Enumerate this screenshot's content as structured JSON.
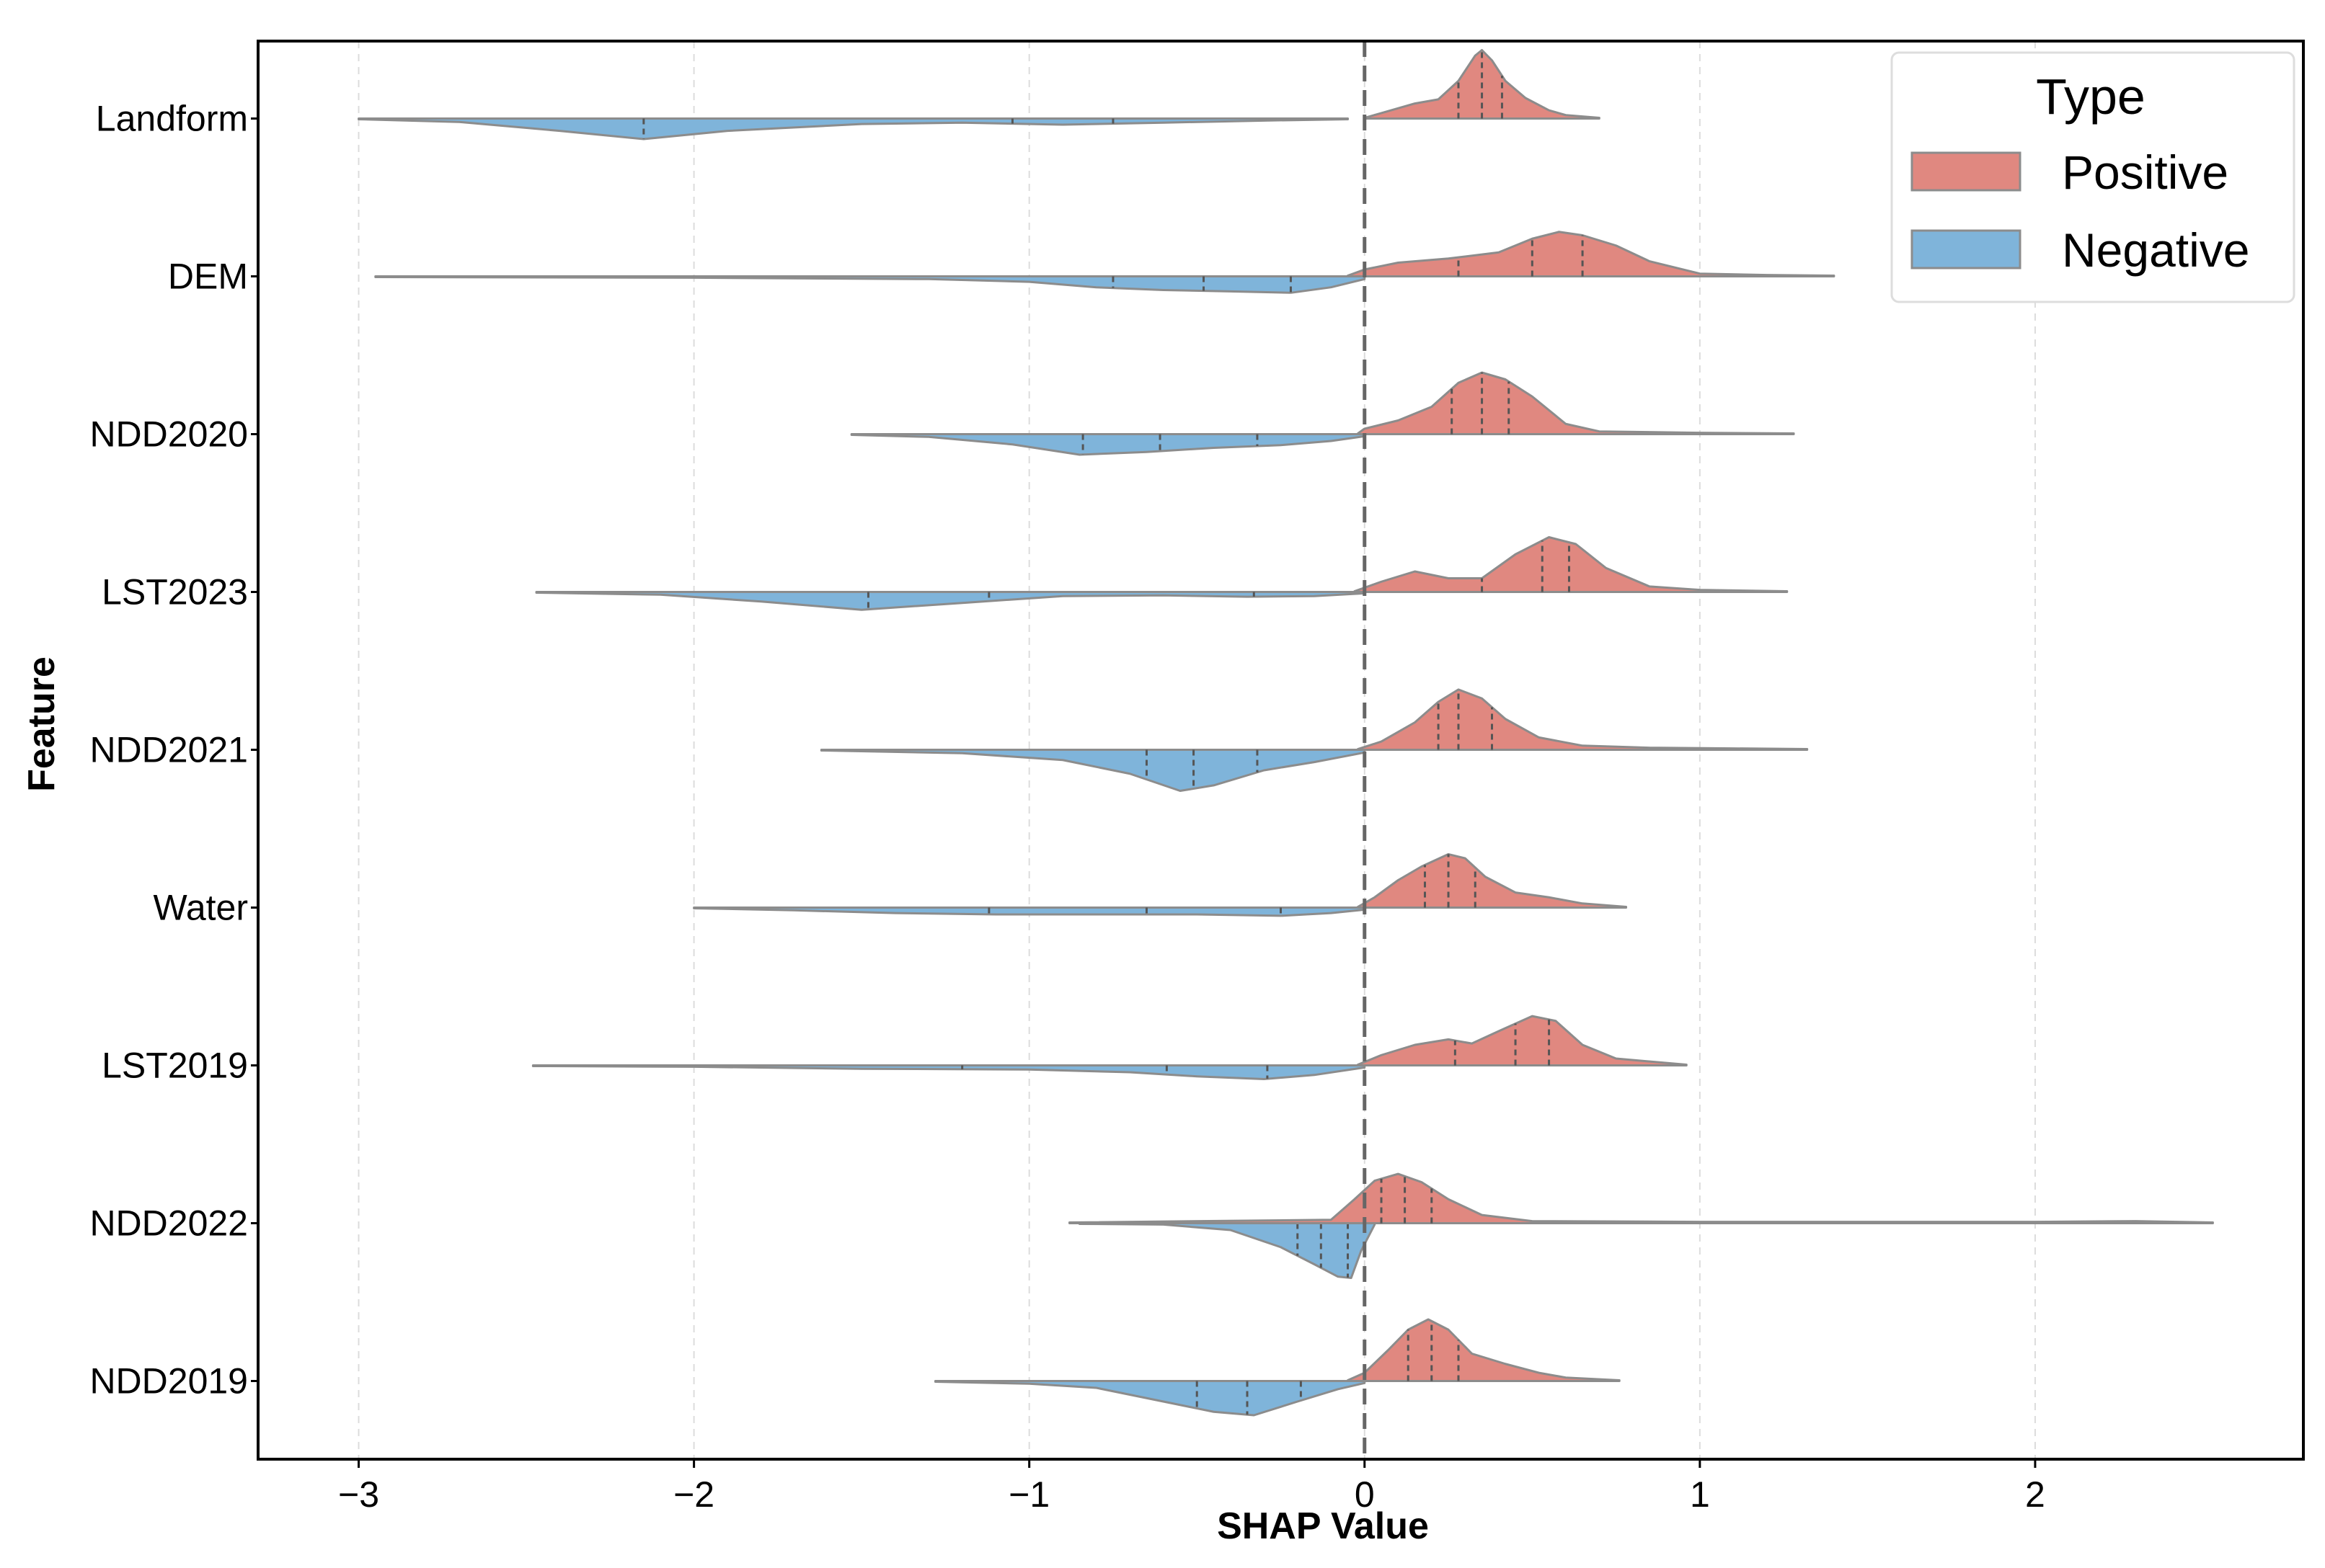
{
  "chart_data": {
    "type": "violin",
    "subtype": "split-violin",
    "title": "",
    "xlabel": "SHAP Value",
    "ylabel": "Feature",
    "xlim": [
      -3.3,
      2.8
    ],
    "x_ticks": [
      -3,
      -2,
      -1,
      0,
      1,
      2
    ],
    "x_tick_labels": [
      "−3",
      "−2",
      "−1",
      "0",
      "1",
      "2"
    ],
    "grid": "vertical dashed",
    "reference_line": 0,
    "legend": {
      "title": "Type",
      "placement": "top-right",
      "entries": [
        {
          "label": "Positive",
          "color": "#e08880"
        },
        {
          "label": "Negative",
          "color": "#7fb4da"
        }
      ]
    },
    "colors": {
      "positive": "#e08880",
      "negative": "#7fb4da",
      "outline": "#8c8c8c",
      "quartile": "#555555",
      "zero_line": "#666666"
    },
    "features": [
      {
        "name": "Landform",
        "positive": {
          "range": [
            0.0,
            0.7
          ],
          "quartiles": [
            0.28,
            0.35,
            0.41
          ],
          "density": [
            [
              0.0,
              0.01
            ],
            [
              0.05,
              0.08
            ],
            [
              0.15,
              0.22
            ],
            [
              0.22,
              0.28
            ],
            [
              0.28,
              0.55
            ],
            [
              0.33,
              0.92
            ],
            [
              0.35,
              1.0
            ],
            [
              0.38,
              0.85
            ],
            [
              0.42,
              0.55
            ],
            [
              0.48,
              0.3
            ],
            [
              0.55,
              0.12
            ],
            [
              0.6,
              0.05
            ],
            [
              0.7,
              0.01
            ]
          ]
        },
        "negative": {
          "range": [
            -3.0,
            -0.05
          ],
          "quartiles": [
            -2.15,
            -1.05,
            -0.75
          ],
          "density": [
            [
              -3.0,
              0.01
            ],
            [
              -2.7,
              0.05
            ],
            [
              -2.4,
              0.18
            ],
            [
              -2.15,
              0.3
            ],
            [
              -1.9,
              0.18
            ],
            [
              -1.5,
              0.08
            ],
            [
              -1.2,
              0.06
            ],
            [
              -0.9,
              0.09
            ],
            [
              -0.6,
              0.06
            ],
            [
              -0.3,
              0.03
            ],
            [
              -0.05,
              0.01
            ]
          ]
        }
      },
      {
        "name": "DEM",
        "positive": {
          "range": [
            -0.05,
            1.4
          ],
          "quartiles": [
            0.28,
            0.5,
            0.65
          ],
          "density": [
            [
              -0.05,
              0.01
            ],
            [
              0.0,
              0.1
            ],
            [
              0.1,
              0.2
            ],
            [
              0.25,
              0.26
            ],
            [
              0.4,
              0.35
            ],
            [
              0.5,
              0.55
            ],
            [
              0.58,
              0.65
            ],
            [
              0.65,
              0.6
            ],
            [
              0.75,
              0.45
            ],
            [
              0.85,
              0.22
            ],
            [
              1.0,
              0.04
            ],
            [
              1.2,
              0.02
            ],
            [
              1.4,
              0.01
            ]
          ]
        },
        "negative": {
          "range": [
            -2.95,
            0.0
          ],
          "quartiles": [
            -0.75,
            -0.48,
            -0.22
          ],
          "density": [
            [
              -2.95,
              0.01
            ],
            [
              -2.0,
              0.02
            ],
            [
              -1.3,
              0.04
            ],
            [
              -1.0,
              0.08
            ],
            [
              -0.8,
              0.16
            ],
            [
              -0.6,
              0.2
            ],
            [
              -0.4,
              0.22
            ],
            [
              -0.22,
              0.24
            ],
            [
              -0.1,
              0.16
            ],
            [
              0.0,
              0.04
            ]
          ]
        }
      },
      {
        "name": "NDD2020",
        "positive": {
          "range": [
            -0.02,
            1.28
          ],
          "quartiles": [
            0.26,
            0.35,
            0.43
          ],
          "density": [
            [
              -0.02,
              0.01
            ],
            [
              0.0,
              0.08
            ],
            [
              0.1,
              0.2
            ],
            [
              0.2,
              0.4
            ],
            [
              0.28,
              0.75
            ],
            [
              0.35,
              0.9
            ],
            [
              0.42,
              0.8
            ],
            [
              0.5,
              0.55
            ],
            [
              0.6,
              0.15
            ],
            [
              0.7,
              0.04
            ],
            [
              1.0,
              0.02
            ],
            [
              1.28,
              0.01
            ]
          ]
        },
        "negative": {
          "range": [
            -1.53,
            0.0
          ],
          "quartiles": [
            -0.84,
            -0.61,
            -0.32
          ],
          "density": [
            [
              -1.53,
              0.01
            ],
            [
              -1.3,
              0.04
            ],
            [
              -1.05,
              0.15
            ],
            [
              -0.85,
              0.3
            ],
            [
              -0.65,
              0.26
            ],
            [
              -0.45,
              0.2
            ],
            [
              -0.25,
              0.16
            ],
            [
              -0.1,
              0.1
            ],
            [
              0.0,
              0.03
            ]
          ]
        }
      },
      {
        "name": "LST2023",
        "positive": {
          "range": [
            -0.03,
            1.26
          ],
          "quartiles": [
            0.35,
            0.53,
            0.61
          ],
          "density": [
            [
              -0.03,
              0.01
            ],
            [
              0.05,
              0.15
            ],
            [
              0.15,
              0.3
            ],
            [
              0.25,
              0.2
            ],
            [
              0.35,
              0.2
            ],
            [
              0.45,
              0.55
            ],
            [
              0.55,
              0.8
            ],
            [
              0.63,
              0.7
            ],
            [
              0.72,
              0.35
            ],
            [
              0.85,
              0.08
            ],
            [
              1.0,
              0.03
            ],
            [
              1.26,
              0.01
            ]
          ]
        },
        "negative": {
          "range": [
            -2.47,
            0.0
          ],
          "quartiles": [
            -1.48,
            -1.12,
            -0.33
          ],
          "density": [
            [
              -2.47,
              0.01
            ],
            [
              -2.1,
              0.04
            ],
            [
              -1.8,
              0.14
            ],
            [
              -1.5,
              0.26
            ],
            [
              -1.2,
              0.16
            ],
            [
              -0.9,
              0.06
            ],
            [
              -0.6,
              0.05
            ],
            [
              -0.35,
              0.07
            ],
            [
              -0.15,
              0.06
            ],
            [
              0.0,
              0.02
            ]
          ]
        }
      },
      {
        "name": "NDD2021",
        "positive": {
          "range": [
            -0.02,
            1.32
          ],
          "quartiles": [
            0.22,
            0.28,
            0.38
          ],
          "density": [
            [
              -0.02,
              0.01
            ],
            [
              0.05,
              0.12
            ],
            [
              0.15,
              0.4
            ],
            [
              0.22,
              0.7
            ],
            [
              0.28,
              0.88
            ],
            [
              0.35,
              0.75
            ],
            [
              0.42,
              0.45
            ],
            [
              0.52,
              0.18
            ],
            [
              0.65,
              0.06
            ],
            [
              0.85,
              0.03
            ],
            [
              1.1,
              0.02
            ],
            [
              1.32,
              0.01
            ]
          ]
        },
        "negative": {
          "range": [
            -1.62,
            0.0
          ],
          "quartiles": [
            -0.65,
            -0.51,
            -0.32
          ],
          "density": [
            [
              -1.62,
              0.01
            ],
            [
              -1.2,
              0.05
            ],
            [
              -0.9,
              0.15
            ],
            [
              -0.7,
              0.35
            ],
            [
              -0.55,
              0.6
            ],
            [
              -0.45,
              0.52
            ],
            [
              -0.3,
              0.3
            ],
            [
              -0.15,
              0.18
            ],
            [
              0.0,
              0.04
            ]
          ]
        }
      },
      {
        "name": "Water",
        "positive": {
          "range": [
            -0.02,
            0.78
          ],
          "quartiles": [
            0.18,
            0.25,
            0.33
          ],
          "density": [
            [
              -0.02,
              0.01
            ],
            [
              0.03,
              0.15
            ],
            [
              0.1,
              0.4
            ],
            [
              0.17,
              0.6
            ],
            [
              0.25,
              0.78
            ],
            [
              0.3,
              0.72
            ],
            [
              0.36,
              0.45
            ],
            [
              0.45,
              0.22
            ],
            [
              0.55,
              0.15
            ],
            [
              0.65,
              0.06
            ],
            [
              0.78,
              0.01
            ]
          ]
        },
        "negative": {
          "range": [
            -2.0,
            0.0
          ],
          "quartiles": [
            -1.12,
            -0.65,
            -0.25
          ],
          "density": [
            [
              -2.0,
              0.01
            ],
            [
              -1.7,
              0.04
            ],
            [
              -1.4,
              0.08
            ],
            [
              -1.1,
              0.1
            ],
            [
              -0.8,
              0.1
            ],
            [
              -0.5,
              0.1
            ],
            [
              -0.25,
              0.12
            ],
            [
              -0.1,
              0.08
            ],
            [
              0.0,
              0.03
            ]
          ]
        }
      },
      {
        "name": "LST2019",
        "positive": {
          "range": [
            -0.02,
            0.96
          ],
          "quartiles": [
            0.27,
            0.45,
            0.55
          ],
          "density": [
            [
              -0.02,
              0.01
            ],
            [
              0.05,
              0.15
            ],
            [
              0.15,
              0.3
            ],
            [
              0.25,
              0.38
            ],
            [
              0.32,
              0.32
            ],
            [
              0.4,
              0.5
            ],
            [
              0.5,
              0.72
            ],
            [
              0.57,
              0.65
            ],
            [
              0.65,
              0.3
            ],
            [
              0.75,
              0.1
            ],
            [
              0.96,
              0.01
            ]
          ]
        },
        "negative": {
          "range": [
            -2.48,
            0.0
          ],
          "quartiles": [
            -1.2,
            -0.59,
            -0.29
          ],
          "density": [
            [
              -2.48,
              0.01
            ],
            [
              -2.0,
              0.02
            ],
            [
              -1.5,
              0.05
            ],
            [
              -1.0,
              0.06
            ],
            [
              -0.7,
              0.1
            ],
            [
              -0.5,
              0.16
            ],
            [
              -0.3,
              0.2
            ],
            [
              -0.15,
              0.14
            ],
            [
              0.0,
              0.03
            ]
          ]
        }
      },
      {
        "name": "NDD2022",
        "positive": {
          "range": [
            -0.88,
            2.53
          ],
          "quartiles": [
            0.05,
            0.12,
            0.2
          ],
          "density": [
            [
              -0.88,
              0.01
            ],
            [
              -0.1,
              0.05
            ],
            [
              -0.03,
              0.35
            ],
            [
              0.03,
              0.62
            ],
            [
              0.1,
              0.72
            ],
            [
              0.17,
              0.6
            ],
            [
              0.25,
              0.35
            ],
            [
              0.35,
              0.12
            ],
            [
              0.5,
              0.03
            ],
            [
              1.0,
              0.02
            ],
            [
              2.0,
              0.02
            ],
            [
              2.3,
              0.03
            ],
            [
              2.53,
              0.01
            ]
          ]
        },
        "negative": {
          "range": [
            -0.85,
            0.03
          ],
          "quartiles": [
            -0.2,
            -0.13,
            -0.05
          ],
          "density": [
            [
              -0.85,
              0.01
            ],
            [
              -0.6,
              0.02
            ],
            [
              -0.4,
              0.1
            ],
            [
              -0.25,
              0.35
            ],
            [
              -0.15,
              0.6
            ],
            [
              -0.08,
              0.78
            ],
            [
              -0.04,
              0.8
            ],
            [
              -0.01,
              0.4
            ],
            [
              0.03,
              0.02
            ]
          ]
        }
      },
      {
        "name": "NDD2019",
        "positive": {
          "range": [
            -0.05,
            0.76
          ],
          "quartiles": [
            0.13,
            0.2,
            0.28
          ],
          "density": [
            [
              -0.05,
              0.01
            ],
            [
              0.0,
              0.12
            ],
            [
              0.07,
              0.45
            ],
            [
              0.13,
              0.75
            ],
            [
              0.19,
              0.9
            ],
            [
              0.25,
              0.75
            ],
            [
              0.32,
              0.4
            ],
            [
              0.42,
              0.25
            ],
            [
              0.52,
              0.12
            ],
            [
              0.6,
              0.05
            ],
            [
              0.76,
              0.01
            ]
          ]
        },
        "negative": {
          "range": [
            -1.28,
            0.0
          ],
          "quartiles": [
            -0.5,
            -0.35,
            -0.19
          ],
          "density": [
            [
              -1.28,
              0.01
            ],
            [
              -1.0,
              0.04
            ],
            [
              -0.8,
              0.1
            ],
            [
              -0.6,
              0.3
            ],
            [
              -0.45,
              0.45
            ],
            [
              -0.33,
              0.5
            ],
            [
              -0.2,
              0.3
            ],
            [
              -0.08,
              0.12
            ],
            [
              0.0,
              0.03
            ]
          ]
        }
      }
    ]
  }
}
